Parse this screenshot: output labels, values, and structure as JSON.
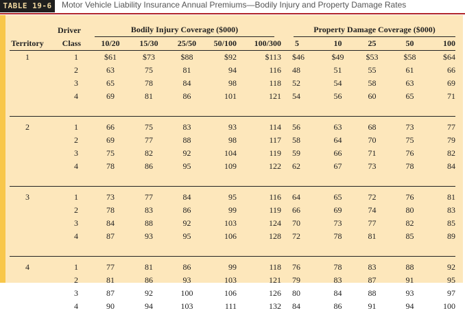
{
  "title": {
    "label": "TABLE 19-6",
    "text": "Motor Vehicle Liability Insurance Annual Premiums—Bodily Injury and Property Damage Rates"
  },
  "headers": {
    "territory": "Territory",
    "driver": "Driver",
    "class": "Class",
    "bodily_group": "Bodily Injury Coverage ($000)",
    "property_group": "Property Damage Coverage ($000)",
    "bodily": [
      "10/20",
      "15/30",
      "25/50",
      "50/100",
      "100/300"
    ],
    "property": [
      "5",
      "10",
      "25",
      "50",
      "100"
    ]
  },
  "colors": {
    "panel": "#fde7bb",
    "stripe": "#f8c74a",
    "title_rule": "#b0262b"
  },
  "territories": [
    {
      "territory": "1",
      "rows": [
        {
          "class": "1",
          "values": [
            "$61",
            "$73",
            "$88",
            "$92",
            "$113",
            "$46",
            "$49",
            "$53",
            "$58",
            "$64"
          ]
        },
        {
          "class": "2",
          "values": [
            "63",
            "75",
            "81",
            "94",
            "116",
            "48",
            "51",
            "55",
            "61",
            "66"
          ]
        },
        {
          "class": "3",
          "values": [
            "65",
            "78",
            "84",
            "98",
            "118",
            "52",
            "54",
            "58",
            "63",
            "69"
          ]
        },
        {
          "class": "4",
          "values": [
            "69",
            "81",
            "86",
            "101",
            "121",
            "54",
            "56",
            "60",
            "65",
            "71"
          ]
        }
      ]
    },
    {
      "territory": "2",
      "rows": [
        {
          "class": "1",
          "values": [
            "66",
            "75",
            "83",
            "93",
            "114",
            "56",
            "63",
            "68",
            "73",
            "77"
          ]
        },
        {
          "class": "2",
          "values": [
            "69",
            "77",
            "88",
            "98",
            "117",
            "58",
            "64",
            "70",
            "75",
            "79"
          ]
        },
        {
          "class": "3",
          "values": [
            "75",
            "82",
            "92",
            "104",
            "119",
            "59",
            "66",
            "71",
            "76",
            "82"
          ]
        },
        {
          "class": "4",
          "values": [
            "78",
            "86",
            "95",
            "109",
            "122",
            "62",
            "67",
            "73",
            "78",
            "84"
          ]
        }
      ]
    },
    {
      "territory": "3",
      "rows": [
        {
          "class": "1",
          "values": [
            "73",
            "77",
            "84",
            "95",
            "116",
            "64",
            "65",
            "72",
            "76",
            "81"
          ]
        },
        {
          "class": "2",
          "values": [
            "78",
            "83",
            "86",
            "99",
            "119",
            "66",
            "69",
            "74",
            "80",
            "83"
          ]
        },
        {
          "class": "3",
          "values": [
            "84",
            "88",
            "92",
            "103",
            "124",
            "70",
            "73",
            "77",
            "82",
            "85"
          ]
        },
        {
          "class": "4",
          "values": [
            "87",
            "93",
            "95",
            "106",
            "128",
            "72",
            "78",
            "81",
            "85",
            "89"
          ]
        }
      ]
    },
    {
      "territory": "4",
      "rows": [
        {
          "class": "1",
          "values": [
            "77",
            "81",
            "86",
            "99",
            "118",
            "76",
            "78",
            "83",
            "88",
            "92"
          ]
        },
        {
          "class": "2",
          "values": [
            "81",
            "86",
            "93",
            "103",
            "121",
            "79",
            "83",
            "87",
            "91",
            "95"
          ]
        },
        {
          "class": "3",
          "values": [
            "87",
            "92",
            "100",
            "106",
            "126",
            "80",
            "84",
            "88",
            "93",
            "97"
          ]
        },
        {
          "class": "4",
          "values": [
            "90",
            "94",
            "103",
            "111",
            "132",
            "84",
            "86",
            "91",
            "94",
            "100"
          ]
        }
      ]
    }
  ]
}
